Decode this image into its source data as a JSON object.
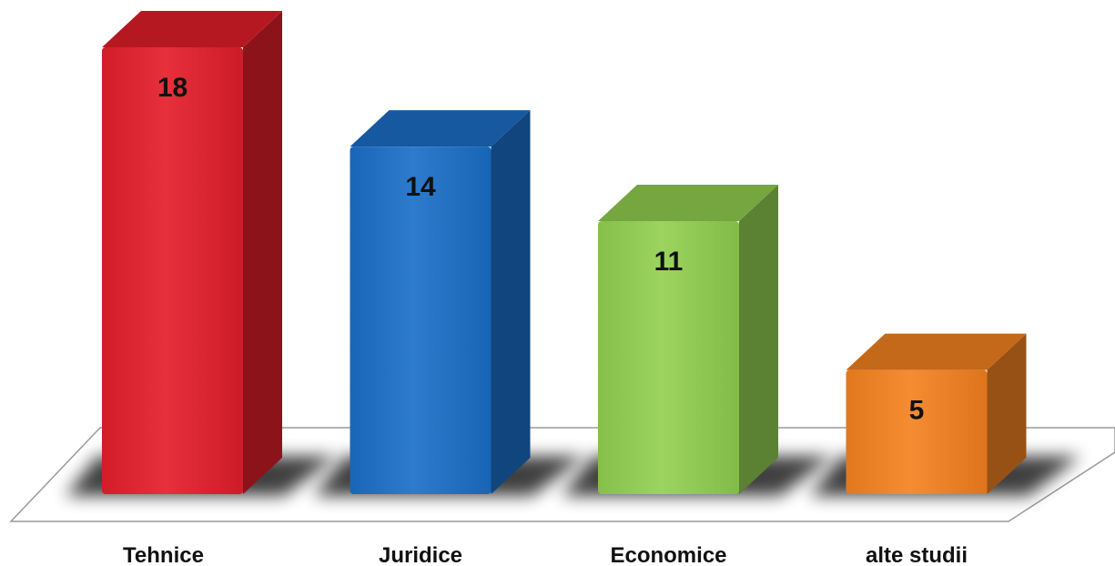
{
  "chart_data": {
    "type": "bar",
    "three_d": true,
    "categories": [
      "Tehnice",
      "Juridice",
      "Economice",
      "alte studii"
    ],
    "values": [
      18,
      14,
      11,
      5
    ],
    "colors": [
      "#e41e2b",
      "#1b6fc9",
      "#92d050",
      "#f58220"
    ],
    "data_labels": [
      "18",
      "14",
      "11",
      "5"
    ],
    "title": "",
    "xlabel": "",
    "ylabel": "",
    "ylim": [
      0,
      18
    ],
    "grid": false,
    "legend": "none"
  }
}
